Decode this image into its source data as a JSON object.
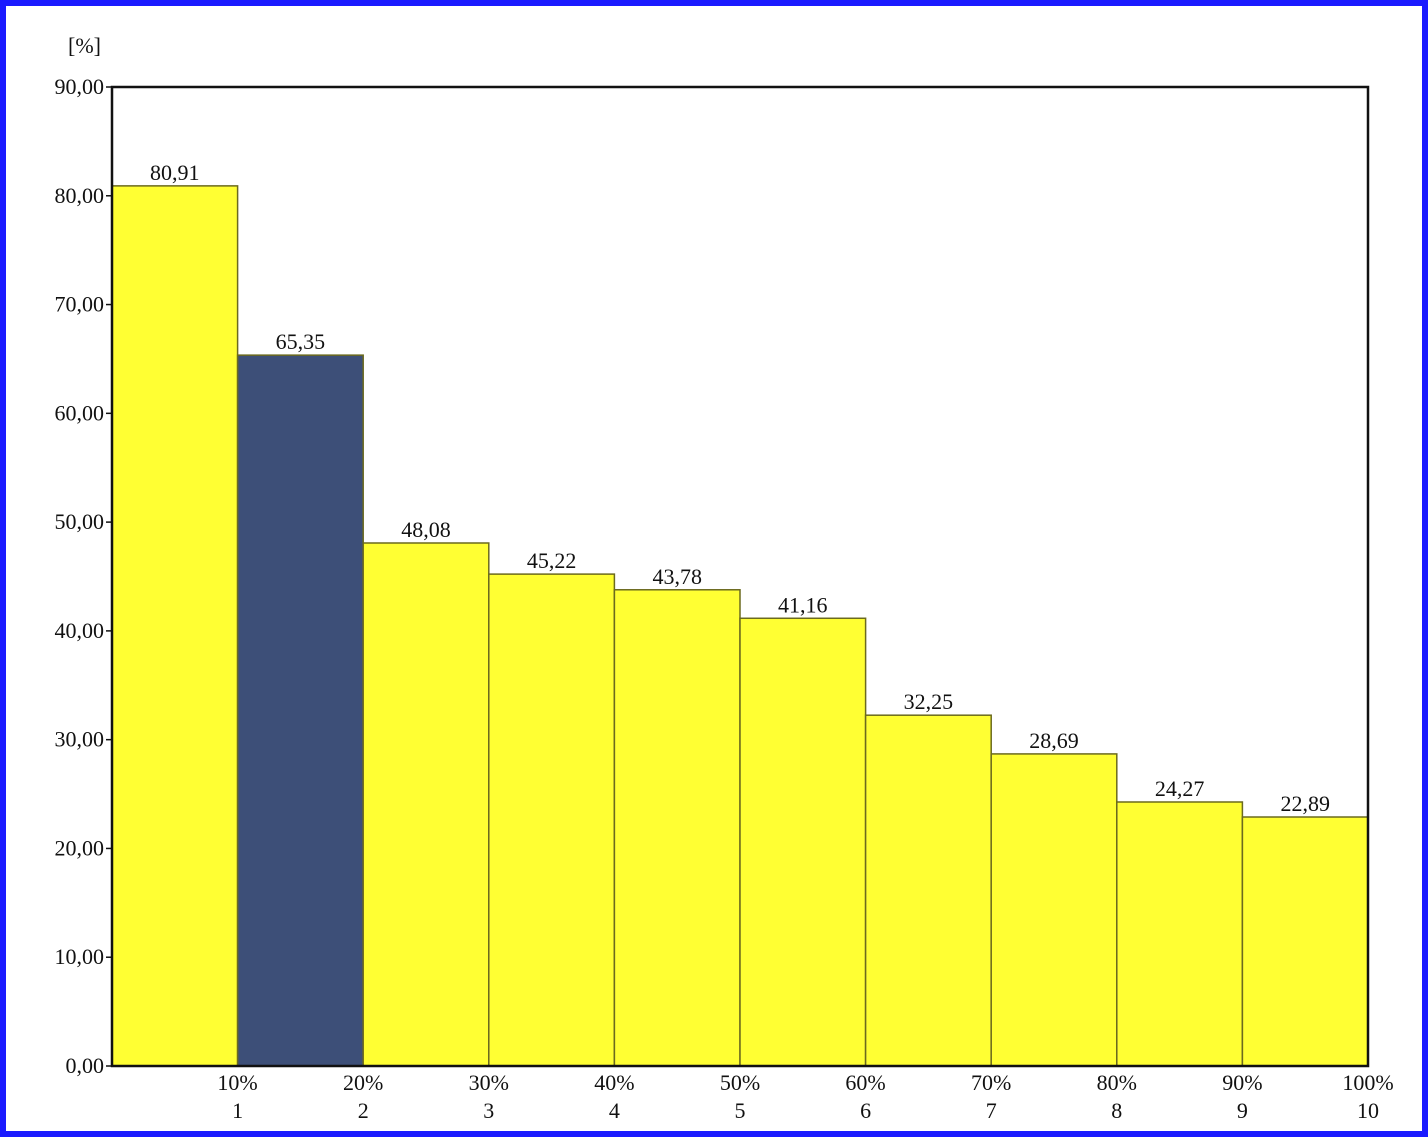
{
  "chart_data": {
    "type": "bar",
    "ylabel": "[%]",
    "ylim": [
      0,
      90
    ],
    "yticks": [
      "0,00",
      "10,00",
      "20,00",
      "30,00",
      "40,00",
      "50,00",
      "60,00",
      "70,00",
      "80,00",
      "90,00"
    ],
    "ytick_values": [
      0,
      10,
      20,
      30,
      40,
      50,
      60,
      70,
      80,
      90
    ],
    "categories": [
      "1",
      "2",
      "3",
      "4",
      "5",
      "6",
      "7",
      "8",
      "9",
      "10"
    ],
    "percent_labels": [
      "10%",
      "20%",
      "30%",
      "40%",
      "50%",
      "60%",
      "70%",
      "80%",
      "90%",
      "100%"
    ],
    "values": [
      80.91,
      65.35,
      48.08,
      45.22,
      43.78,
      41.16,
      32.25,
      28.69,
      24.27,
      22.89
    ],
    "value_labels": [
      "80,91",
      "65,35",
      "48,08",
      "45,22",
      "43,78",
      "41,16",
      "32,25",
      "28,69",
      "24,27",
      "22,89"
    ],
    "highlight_index": 1,
    "colors": {
      "bar": "#ffff33",
      "bar_highlight": "#3d4f78",
      "bar_outline": "#6b6a1e",
      "frame_border": "#1a1aff"
    },
    "grid": false
  }
}
